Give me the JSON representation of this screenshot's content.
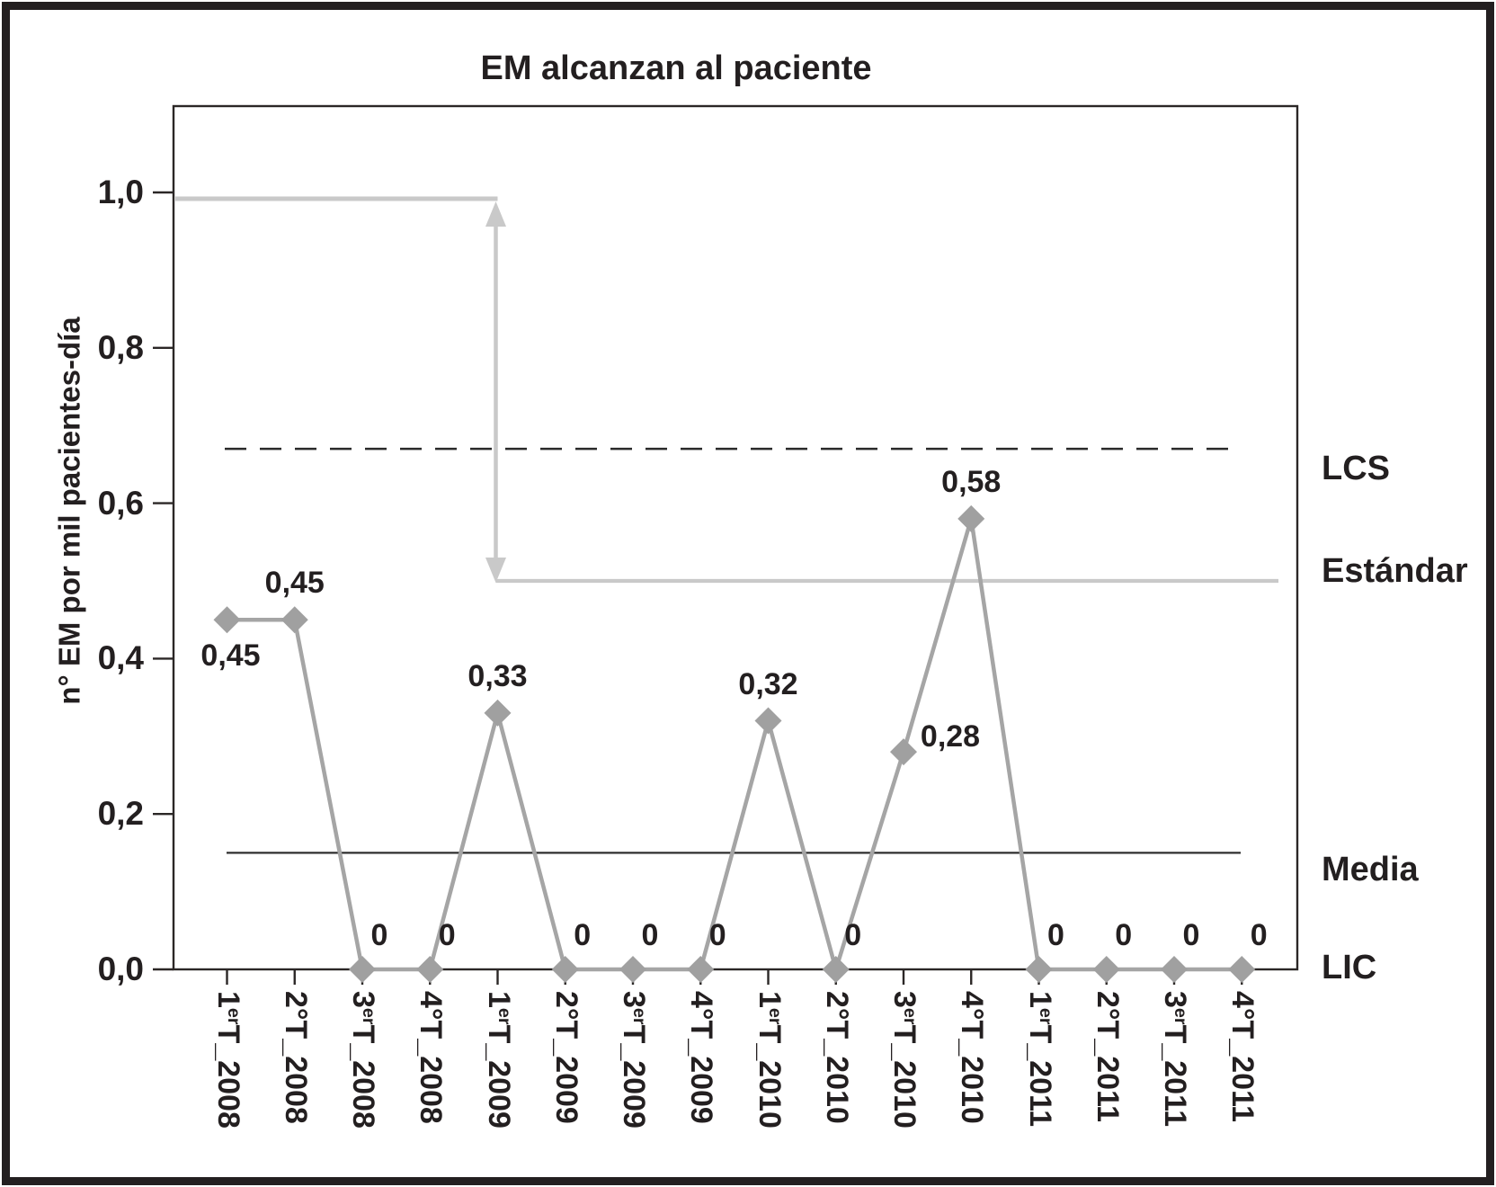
{
  "chart_data": {
    "type": "line",
    "title": "EM alcanzan al paciente",
    "ylabel": "n° EM por mil pacientes-día",
    "xlabel": "",
    "ylim": [
      0,
      1.12
    ],
    "grid": false,
    "marker": "diamond",
    "yticks": [
      {
        "value": 0.0,
        "label": "0,0"
      },
      {
        "value": 0.2,
        "label": "0,2"
      },
      {
        "value": 0.4,
        "label": "0,4"
      },
      {
        "value": 0.6,
        "label": "0,6"
      },
      {
        "value": 0.8,
        "label": "0,8"
      },
      {
        "value": 1.0,
        "label": "1,0"
      }
    ],
    "categories": [
      {
        "name": "1erT_2008",
        "num": "1",
        "ord": "er",
        "rest": "T_2008"
      },
      {
        "name": "2°T_2008",
        "num": "2",
        "ord": "°",
        "rest": "T_2008"
      },
      {
        "name": "3erT_2008",
        "num": "3",
        "ord": "er",
        "rest": "T_2008"
      },
      {
        "name": "4°T_2008",
        "num": "4",
        "ord": "°",
        "rest": "T_2008"
      },
      {
        "name": "1erT_2009",
        "num": "1",
        "ord": "er",
        "rest": "T_2009"
      },
      {
        "name": "2°T_2009",
        "num": "2",
        "ord": "°",
        "rest": "T_2009"
      },
      {
        "name": "3erT_2009",
        "num": "3",
        "ord": "er",
        "rest": "T_2009"
      },
      {
        "name": "4°T_2009",
        "num": "4",
        "ord": "°",
        "rest": "T_2009"
      },
      {
        "name": "1erT_2010",
        "num": "1",
        "ord": "er",
        "rest": "T_2010"
      },
      {
        "name": "2°T_2010",
        "num": "2",
        "ord": "°",
        "rest": "T_2010"
      },
      {
        "name": "3erT_2010",
        "num": "3",
        "ord": "er",
        "rest": "T_2010"
      },
      {
        "name": "4°T_2010",
        "num": "4",
        "ord": "°",
        "rest": "T_2010"
      },
      {
        "name": "1erT_2011",
        "num": "1",
        "ord": "er",
        "rest": "T_2011"
      },
      {
        "name": "2°T_2011",
        "num": "2",
        "ord": "°",
        "rest": "T_2011"
      },
      {
        "name": "3erT_2011",
        "num": "3",
        "ord": "er",
        "rest": "T_2011"
      },
      {
        "name": "4°T_2011",
        "num": "4",
        "ord": "°",
        "rest": "T_2011"
      }
    ],
    "values": [
      0.45,
      0.45,
      0,
      0,
      0.33,
      0,
      0,
      0,
      0.32,
      0,
      0.28,
      0.58,
      0,
      0,
      0,
      0
    ],
    "point_labels": [
      {
        "text": "0,45",
        "pos": "below"
      },
      {
        "text": "0,45",
        "pos": "above"
      },
      {
        "text": "0",
        "pos": "zero"
      },
      {
        "text": "0",
        "pos": "zero"
      },
      {
        "text": "0,33",
        "pos": "above"
      },
      {
        "text": "0",
        "pos": "zero"
      },
      {
        "text": "0",
        "pos": "zero"
      },
      {
        "text": "0",
        "pos": "zero"
      },
      {
        "text": "0,32",
        "pos": "above"
      },
      {
        "text": "0",
        "pos": "zero"
      },
      {
        "text": "0,28",
        "pos": "upper-right"
      },
      {
        "text": "0,58",
        "pos": "above"
      },
      {
        "text": "0",
        "pos": "zero"
      },
      {
        "text": "0",
        "pos": "zero"
      },
      {
        "text": "0",
        "pos": "zero"
      },
      {
        "text": "0",
        "pos": "zero"
      }
    ],
    "reference_lines": [
      {
        "label": "LCS",
        "value": 0.67,
        "style": "dashed-dark"
      },
      {
        "label": "Estándar",
        "value": 0.5,
        "style": "solid-light"
      },
      {
        "label": "Media",
        "value": 0.15,
        "style": "solid-dark-thin"
      },
      {
        "label": "LIC",
        "value": 0.0,
        "style": "at-axis"
      }
    ],
    "annotation_arrow": {
      "type": "double-headed-vertical",
      "from_value": 1.0,
      "to_value": 0.5,
      "at_category": "1erT_2009",
      "at_category_index": 4
    },
    "colors": {
      "series": "#a5a5a5",
      "marker": "#a0a0a0",
      "light_gray": "#c9c9c9",
      "dark": "#231f20"
    }
  }
}
